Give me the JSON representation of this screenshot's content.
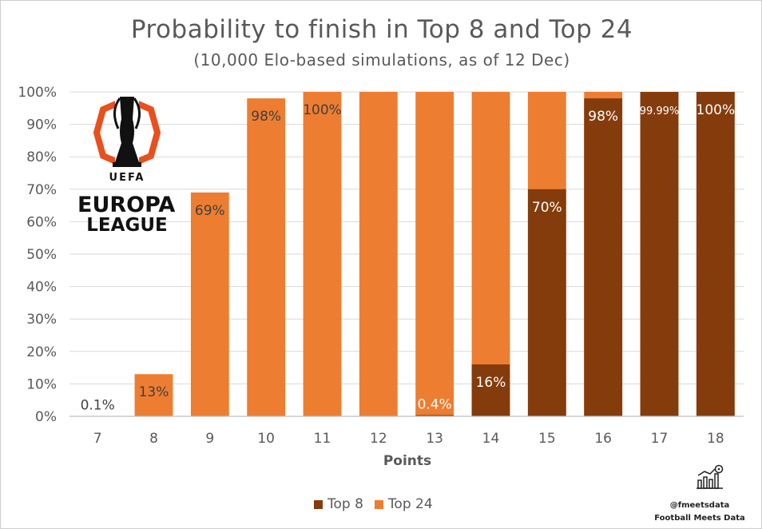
{
  "chart_data": {
    "type": "bar",
    "stacked": false,
    "title": "Probability to finish in Top 8 and Top 24",
    "subtitle": "(10,000 Elo-based simulations, as of 12 Dec)",
    "xlabel": "Points",
    "ylabel": "",
    "ylim": [
      0,
      100
    ],
    "yticks": [
      "0%",
      "10%",
      "20%",
      "30%",
      "40%",
      "50%",
      "60%",
      "70%",
      "80%",
      "90%",
      "100%"
    ],
    "categories": [
      "7",
      "8",
      "9",
      "10",
      "11",
      "12",
      "13",
      "14",
      "15",
      "16",
      "17",
      "18"
    ],
    "series": [
      {
        "name": "Top 8",
        "color": "#843C0C",
        "values": [
          0,
          0,
          0,
          0,
          0,
          0,
          0.4,
          16,
          70,
          98,
          99.99,
          100
        ]
      },
      {
        "name": "Top 24",
        "color": "#ED7D31",
        "values": [
          0.1,
          13,
          69,
          98,
          100,
          100,
          100,
          100,
          100,
          100,
          100,
          100
        ]
      }
    ],
    "data_labels": [
      {
        "category": "7",
        "text": "0.1%"
      },
      {
        "category": "8",
        "text": "13%"
      },
      {
        "category": "9",
        "text": "69%"
      },
      {
        "category": "10",
        "text": "98%"
      },
      {
        "category": "11",
        "text": "100%"
      },
      {
        "category": "13",
        "text": "0.4%"
      },
      {
        "category": "14",
        "text": "16%"
      },
      {
        "category": "15",
        "text": "70%"
      },
      {
        "category": "16",
        "text": "98%"
      },
      {
        "category": "17",
        "text": "99.99%"
      },
      {
        "category": "18",
        "text": "100%"
      }
    ],
    "legend": "bottom-center",
    "grid": true
  },
  "logo": {
    "line1": "UEFA",
    "line2": "EUROPA",
    "line3": "LEAGUE"
  },
  "credits": {
    "handle": "@fmeetsdata",
    "brand": "Football Meets Data"
  },
  "colors": {
    "top8": "#843C0C",
    "top24": "#ED7D31",
    "text": "#595959",
    "grid": "#d9d9d9"
  },
  "icons": {
    "brand": "chart-football-icon"
  }
}
